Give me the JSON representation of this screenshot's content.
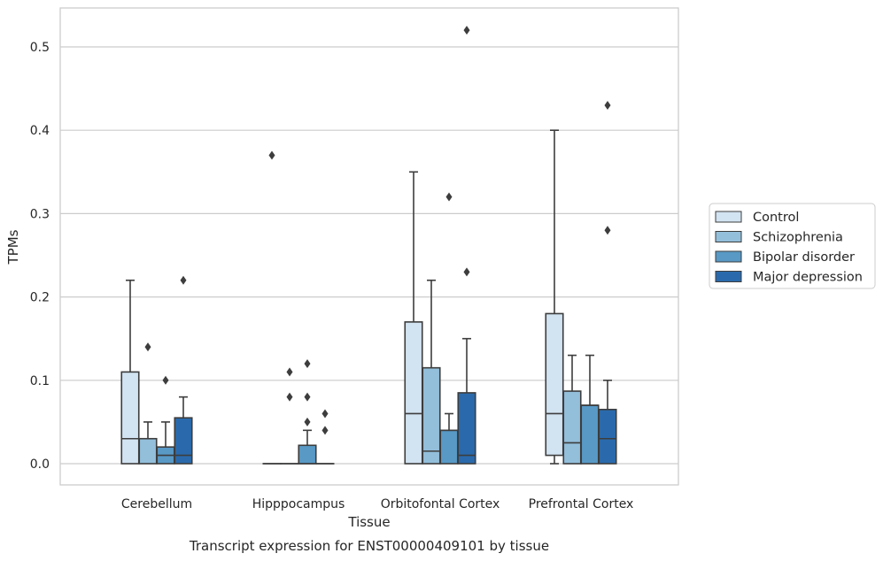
{
  "chart_data": {
    "type": "box",
    "title": "",
    "caption": "Transcript expression for ENST00000409101 by tissue",
    "xlabel": "Tissue",
    "ylabel": "TPMs",
    "ylim": [
      -0.026,
      0.548
    ],
    "yticks": [
      0.0,
      0.1,
      0.2,
      0.3,
      0.4,
      0.5
    ],
    "ytick_labels": [
      "0.0",
      "0.1",
      "0.2",
      "0.3",
      "0.4",
      "0.5"
    ],
    "grid": "horizontal",
    "legend_position": "right",
    "categories": [
      "Cerebellum",
      "Hipppocampus",
      "Orbitofontal Cortex",
      "Prefrontal Cortex"
    ],
    "series": [
      {
        "name": "Control",
        "color": "#d2e3f1",
        "boxes": [
          {
            "q1": 0.0,
            "median": 0.03,
            "q3": 0.11,
            "whisker_low": 0.0,
            "whisker_high": 0.22,
            "outliers": []
          },
          {
            "q1": 0.0,
            "median": 0.0,
            "q3": 0.0,
            "whisker_low": 0.0,
            "whisker_high": 0.0,
            "outliers": [
              0.37
            ]
          },
          {
            "q1": 0.0,
            "median": 0.06,
            "q3": 0.17,
            "whisker_low": 0.0,
            "whisker_high": 0.35,
            "outliers": []
          },
          {
            "q1": 0.01,
            "median": 0.06,
            "q3": 0.18,
            "whisker_low": 0.0,
            "whisker_high": 0.4,
            "outliers": []
          }
        ]
      },
      {
        "name": "Schizophrenia",
        "color": "#93bfdb",
        "boxes": [
          {
            "q1": 0.0,
            "median": 0.03,
            "q3": 0.03,
            "whisker_low": 0.0,
            "whisker_high": 0.05,
            "outliers": [
              0.14
            ]
          },
          {
            "q1": 0.0,
            "median": 0.0,
            "q3": 0.0,
            "whisker_low": 0.0,
            "whisker_high": 0.0,
            "outliers": [
              0.11,
              0.08
            ]
          },
          {
            "q1": 0.0,
            "median": 0.015,
            "q3": 0.115,
            "whisker_low": 0.0,
            "whisker_high": 0.22,
            "outliers": []
          },
          {
            "q1": 0.0,
            "median": 0.025,
            "q3": 0.087,
            "whisker_low": 0.0,
            "whisker_high": 0.13,
            "outliers": []
          }
        ]
      },
      {
        "name": "Bipolar disorder",
        "color": "#5899c6",
        "boxes": [
          {
            "q1": 0.0,
            "median": 0.01,
            "q3": 0.02,
            "whisker_low": 0.0,
            "whisker_high": 0.05,
            "outliers": [
              0.1
            ]
          },
          {
            "q1": 0.0,
            "median": 0.0,
            "q3": 0.022,
            "whisker_low": 0.0,
            "whisker_high": 0.04,
            "outliers": [
              0.12,
              0.08,
              0.05
            ]
          },
          {
            "q1": 0.0,
            "median": 0.04,
            "q3": 0.04,
            "whisker_low": 0.0,
            "whisker_high": 0.06,
            "outliers": [
              0.32
            ]
          },
          {
            "q1": 0.0,
            "median": 0.07,
            "q3": 0.07,
            "whisker_low": 0.0,
            "whisker_high": 0.13,
            "outliers": []
          }
        ]
      },
      {
        "name": "Major depression",
        "color": "#2a6aac",
        "boxes": [
          {
            "q1": 0.0,
            "median": 0.01,
            "q3": 0.055,
            "whisker_low": 0.0,
            "whisker_high": 0.08,
            "outliers": [
              0.22
            ]
          },
          {
            "q1": 0.0,
            "median": 0.0,
            "q3": 0.0,
            "whisker_low": 0.0,
            "whisker_high": 0.0,
            "outliers": [
              0.06,
              0.04
            ]
          },
          {
            "q1": 0.0,
            "median": 0.01,
            "q3": 0.085,
            "whisker_low": 0.0,
            "whisker_high": 0.15,
            "outliers": [
              0.52,
              0.23
            ]
          },
          {
            "q1": 0.0,
            "median": 0.03,
            "q3": 0.065,
            "whisker_low": 0.0,
            "whisker_high": 0.1,
            "outliers": [
              0.43,
              0.28
            ]
          }
        ]
      }
    ]
  }
}
